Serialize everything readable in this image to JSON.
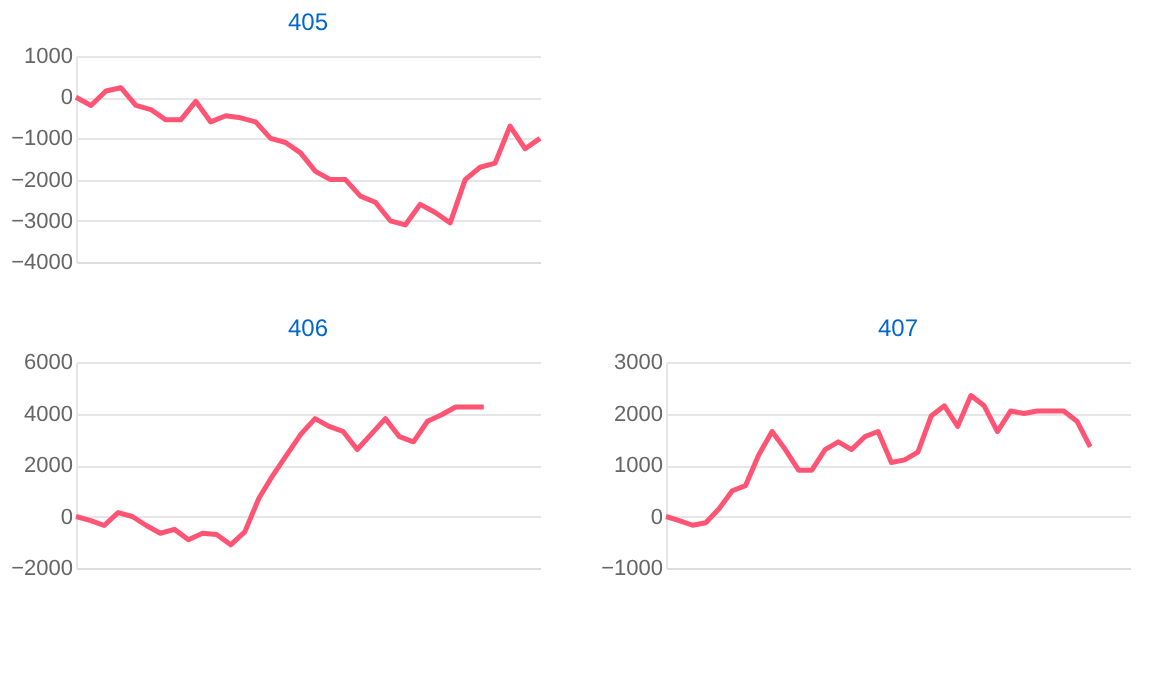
{
  "chart_data": [
    {
      "type": "line",
      "title": "405",
      "categories": [
        null,
        null,
        null,
        null,
        null,
        null,
        null,
        null,
        null,
        null,
        null,
        null,
        null,
        null,
        null,
        null,
        null,
        null,
        null,
        null,
        null,
        null,
        null,
        null,
        null,
        null,
        null,
        null,
        null,
        null,
        null,
        null
      ],
      "values": [
        0,
        -200,
        150,
        230,
        -200,
        -300,
        -550,
        -550,
        -100,
        -600,
        -450,
        -500,
        -600,
        -1000,
        -1100,
        -1350,
        -1800,
        -2000,
        -2000,
        -2400,
        -2550,
        -3000,
        -3100,
        -2600,
        -2800,
        -3050,
        -2000,
        -1700,
        -1600,
        -700,
        -1250,
        -1000
      ],
      "color": "#ff5473",
      "ylim": [
        -4000,
        1000
      ],
      "yticks": [
        -4000,
        -3000,
        -2000,
        -1000,
        0,
        1000
      ],
      "grid": "y",
      "tick_labels": "y",
      "marker": "none"
    },
    {
      "type": "line",
      "title": "406",
      "categories": [
        null,
        null,
        null,
        null,
        null,
        null,
        null,
        null,
        null,
        null,
        null,
        null,
        null,
        null,
        null,
        null,
        null,
        null,
        null,
        null,
        null,
        null,
        null,
        null,
        null,
        null,
        null,
        null,
        null,
        null,
        null,
        null,
        null,
        null
      ],
      "values": [
        0,
        -150,
        -350,
        150,
        0,
        -350,
        -650,
        -500,
        -900,
        -650,
        -700,
        -1100,
        -600,
        700,
        1600,
        2400,
        3200,
        3800,
        3500,
        3300,
        2600,
        3200,
        3800,
        3100,
        2900,
        3700,
        3950,
        4250,
        4250,
        4250,
        null,
        null,
        null,
        null
      ],
      "color": "#ff5473",
      "ylim": [
        -2000,
        6000
      ],
      "yticks": [
        -2000,
        0,
        2000,
        4000,
        6000
      ],
      "grid": "y",
      "tick_labels": "y",
      "marker": "none"
    },
    {
      "type": "line",
      "title": "407",
      "categories": [
        null,
        null,
        null,
        null,
        null,
        null,
        null,
        null,
        null,
        null,
        null,
        null,
        null,
        null,
        null,
        null,
        null,
        null,
        null,
        null,
        null,
        null,
        null,
        null,
        null,
        null,
        null,
        null,
        null,
        null,
        null,
        null,
        null,
        null,
        null,
        null
      ],
      "values": [
        0,
        -80,
        -170,
        -120,
        150,
        500,
        600,
        1200,
        1650,
        1300,
        900,
        900,
        1300,
        1450,
        1300,
        1550,
        1650,
        1050,
        1100,
        1250,
        1950,
        2150,
        1750,
        2350,
        2150,
        1650,
        2050,
        2000,
        2050,
        2050,
        2050,
        1850,
        1350,
        null,
        null,
        null
      ],
      "color": "#ff5473",
      "ylim": [
        -1000,
        3000
      ],
      "yticks": [
        -1000,
        0,
        1000,
        2000,
        3000
      ],
      "grid": "y",
      "tick_labels": "y",
      "marker": "none"
    }
  ]
}
